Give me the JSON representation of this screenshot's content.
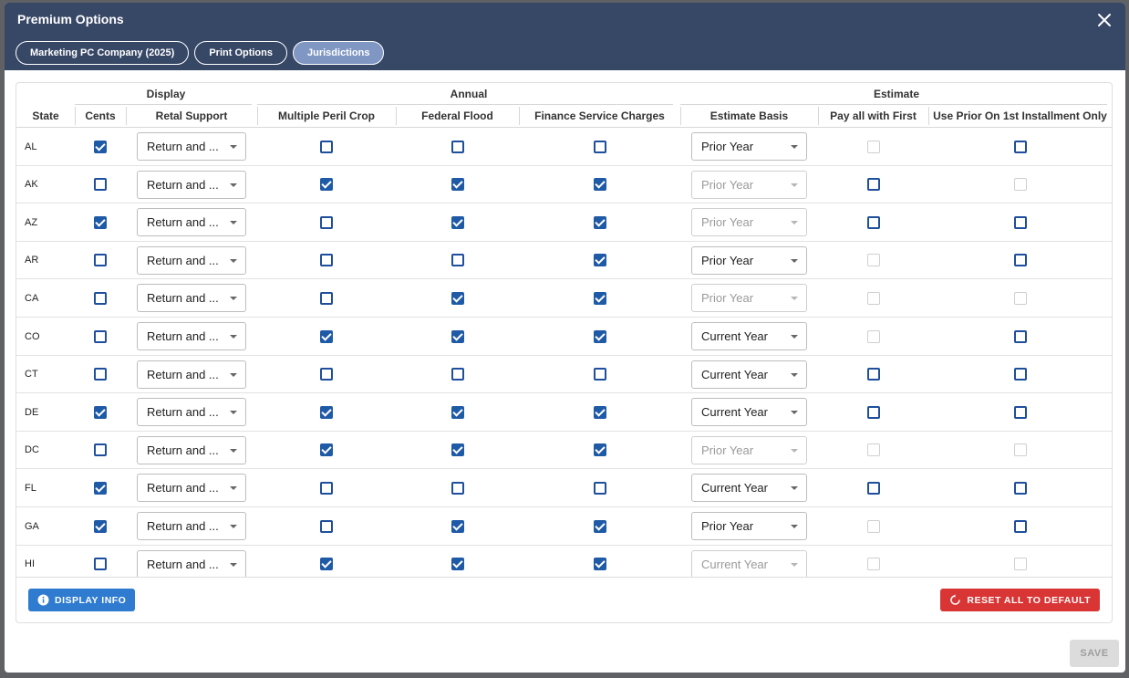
{
  "dialog": {
    "title": "Premium Options"
  },
  "tabs": [
    {
      "label": "Marketing PC Company (2025)",
      "active": false
    },
    {
      "label": "Print Options",
      "active": false
    },
    {
      "label": "Jurisdictions",
      "active": true
    }
  ],
  "table": {
    "groups": {
      "display": "Display",
      "annual": "Annual",
      "estimate": "Estimate"
    },
    "columns": {
      "state": "State",
      "cents": "Cents",
      "retal": "Retal Support",
      "mpc": "Multiple Peril Crop",
      "flood": "Federal Flood",
      "fsc": "Finance Service Charges",
      "basis": "Estimate Basis",
      "payall": "Pay all with First",
      "useprior": "Use Prior On 1st Installment Only"
    },
    "rows": [
      {
        "state": "AL",
        "cents": true,
        "retal": "Return and ...",
        "mpc": false,
        "flood": false,
        "fsc": false,
        "basis": "Prior Year",
        "basis_disabled": false,
        "payall": false,
        "payall_disabled": true,
        "useprior": false,
        "useprior_disabled": false
      },
      {
        "state": "AK",
        "cents": false,
        "retal": "Return and ...",
        "mpc": true,
        "flood": true,
        "fsc": true,
        "basis": "Prior Year",
        "basis_disabled": true,
        "payall": false,
        "payall_disabled": false,
        "useprior": false,
        "useprior_disabled": true
      },
      {
        "state": "AZ",
        "cents": true,
        "retal": "Return and ...",
        "mpc": false,
        "flood": true,
        "fsc": true,
        "basis": "Prior Year",
        "basis_disabled": true,
        "payall": false,
        "payall_disabled": false,
        "useprior": false,
        "useprior_disabled": false
      },
      {
        "state": "AR",
        "cents": false,
        "retal": "Return and ...",
        "mpc": false,
        "flood": false,
        "fsc": true,
        "basis": "Prior Year",
        "basis_disabled": false,
        "payall": false,
        "payall_disabled": true,
        "useprior": false,
        "useprior_disabled": false
      },
      {
        "state": "CA",
        "cents": false,
        "retal": "Return and ...",
        "mpc": false,
        "flood": true,
        "fsc": true,
        "basis": "Prior Year",
        "basis_disabled": true,
        "payall": false,
        "payall_disabled": true,
        "useprior": false,
        "useprior_disabled": true
      },
      {
        "state": "CO",
        "cents": false,
        "retal": "Return and ...",
        "mpc": true,
        "flood": true,
        "fsc": true,
        "basis": "Current Year",
        "basis_disabled": false,
        "payall": false,
        "payall_disabled": true,
        "useprior": false,
        "useprior_disabled": false
      },
      {
        "state": "CT",
        "cents": false,
        "retal": "Return and ...",
        "mpc": false,
        "flood": false,
        "fsc": false,
        "basis": "Current Year",
        "basis_disabled": false,
        "payall": false,
        "payall_disabled": false,
        "useprior": false,
        "useprior_disabled": false
      },
      {
        "state": "DE",
        "cents": true,
        "retal": "Return and ...",
        "mpc": true,
        "flood": true,
        "fsc": true,
        "basis": "Current Year",
        "basis_disabled": false,
        "payall": false,
        "payall_disabled": false,
        "useprior": false,
        "useprior_disabled": false
      },
      {
        "state": "DC",
        "cents": false,
        "retal": "Return and ...",
        "mpc": true,
        "flood": true,
        "fsc": true,
        "basis": "Prior Year",
        "basis_disabled": true,
        "payall": false,
        "payall_disabled": true,
        "useprior": false,
        "useprior_disabled": true
      },
      {
        "state": "FL",
        "cents": true,
        "retal": "Return and ...",
        "mpc": false,
        "flood": false,
        "fsc": false,
        "basis": "Current Year",
        "basis_disabled": false,
        "payall": false,
        "payall_disabled": false,
        "useprior": false,
        "useprior_disabled": false
      },
      {
        "state": "GA",
        "cents": true,
        "retal": "Return and ...",
        "mpc": false,
        "flood": true,
        "fsc": true,
        "basis": "Prior Year",
        "basis_disabled": false,
        "payall": false,
        "payall_disabled": true,
        "useprior": false,
        "useprior_disabled": false
      },
      {
        "state": "HI",
        "cents": false,
        "retal": "Return and ...",
        "mpc": true,
        "flood": true,
        "fsc": true,
        "basis": "Current Year",
        "basis_disabled": true,
        "payall": false,
        "payall_disabled": true,
        "useprior": false,
        "useprior_disabled": true
      }
    ]
  },
  "footer": {
    "display_info_label": "DISPLAY INFO",
    "reset_label": "RESET ALL TO DEFAULT",
    "save_label": "SAVE"
  },
  "colors": {
    "header_bg": "#374766",
    "active_tab": "#8096c3",
    "checkbox": "#1f5aa6",
    "info_button": "#2f7bd0",
    "reset_button": "#d93535"
  },
  "icons": {
    "close": "close-icon",
    "info": "info-icon",
    "reset": "reset-icon"
  }
}
